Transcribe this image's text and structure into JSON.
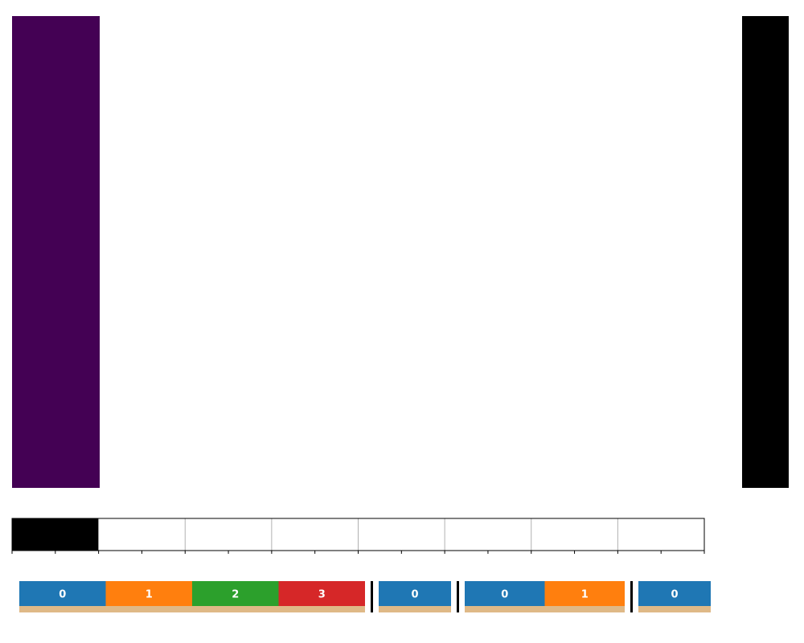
{
  "colors": {
    "heatmap_fill": "#440154",
    "row_bar_fill": "#000000",
    "track_filled": "#000000",
    "track_empty": "#ffffff",
    "track_border": "#000000",
    "cell_divider": "#b0b0b0",
    "base_strip": "#dfb987",
    "group_separator": "#000000",
    "segment_palette": [
      "#1f77b4",
      "#ff7f0e",
      "#2ca02c",
      "#d62728"
    ]
  },
  "track": {
    "cells": 8,
    "filled_cells": 1
  },
  "groups": [
    {
      "segments": [
        "0",
        "1",
        "2",
        "3"
      ]
    },
    {
      "segments": [
        "0"
      ]
    },
    {
      "segments": [
        "0",
        "1"
      ]
    },
    {
      "segments": [
        "0"
      ]
    }
  ]
}
